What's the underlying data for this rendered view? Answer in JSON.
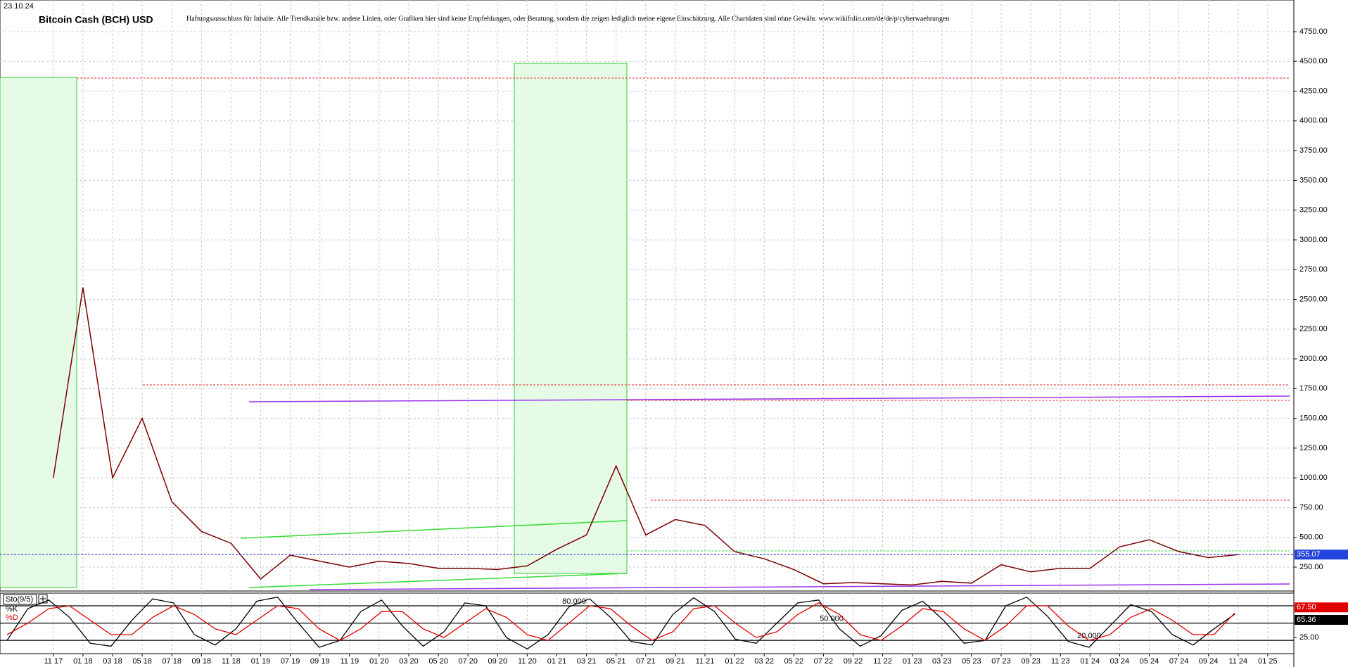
{
  "chart_data": [
    {
      "type": "line",
      "date": "23.10.24",
      "title": "Bitcoin Cash (BCH) USD",
      "disclaimer": "Haftungsausschluss für Inhalte: Alle Trendkanäle bzw. andere Linien, oder Grafiken hier sind keine Empfehlungen, oder Beratung, sondern die zeigen lediglich meine eigene Einschätzung. Alle Chartdaten sind ohne Gewähr. www.wikifolio.com/de/de/p/cyberwaehrungen",
      "categories": [
        "11 17",
        "01 18",
        "03 18",
        "05 18",
        "07 18",
        "09 18",
        "11 18",
        "01 19",
        "07 19",
        "09 19",
        "11 19",
        "01 20",
        "03 20",
        "05 20",
        "07 20",
        "09 20",
        "11 20",
        "01 21",
        "03 21",
        "05 21",
        "07 21",
        "09 21",
        "11 21",
        "01 22",
        "03 22",
        "05 22",
        "07 22",
        "09 22",
        "11 22",
        "01 23",
        "03 23",
        "05 23",
        "07 23",
        "09 23",
        "11 23",
        "01 24",
        "03 24",
        "05 24",
        "07 24",
        "09 24",
        "11 24",
        "01 25"
      ],
      "values": [
        1000,
        2600,
        1000,
        1500,
        800,
        550,
        450,
        150,
        350,
        300,
        250,
        300,
        280,
        240,
        240,
        230,
        260,
        400,
        520,
        1100,
        520,
        650,
        600,
        380,
        320,
        230,
        110,
        120,
        110,
        100,
        130,
        115,
        270,
        210,
        240,
        240,
        420,
        480,
        380,
        330,
        355.07,
        null
      ],
      "color": "#7a0000",
      "last_value_label": "355.07",
      "ylim": [
        49,
        5016
      ],
      "yticks": [
        {
          "value": 250,
          "label": "250.00"
        },
        {
          "value": 500,
          "label": "500.00"
        },
        {
          "value": 750,
          "label": "750.00"
        },
        {
          "value": 1000,
          "label": "1000.00"
        },
        {
          "value": 1250,
          "label": "1250.00"
        },
        {
          "value": 1500,
          "label": "1500.00"
        },
        {
          "value": 1750,
          "label": "1750.00"
        },
        {
          "value": 2000,
          "label": "2000.00"
        },
        {
          "value": 2250,
          "label": "2250.00"
        },
        {
          "value": 2500,
          "label": "2500.00"
        },
        {
          "value": 2750,
          "label": "2750.00"
        },
        {
          "value": 3000,
          "label": "3000.00"
        },
        {
          "value": 3250,
          "label": "3250.00"
        },
        {
          "value": 3500,
          "label": "3500.00"
        },
        {
          "value": 3750,
          "label": "3750.00"
        },
        {
          "value": 4000,
          "label": "4000.00"
        },
        {
          "value": 4250,
          "label": "4250.00"
        },
        {
          "value": 4500,
          "label": "4500.00"
        },
        {
          "value": 4750,
          "label": "4750.00"
        }
      ],
      "grid": true
    },
    {
      "type": "line",
      "title": "Sto(9/5)",
      "ylim": [
        -3,
        102
      ],
      "yticks": [
        {
          "value": 25,
          "label": "25.00"
        }
      ],
      "levels": [
        {
          "value": 80,
          "label": "80.000"
        },
        {
          "value": 50,
          "label": "50.000"
        },
        {
          "value": 20,
          "label": "20.000"
        }
      ],
      "series": [
        {
          "name": "%K",
          "color": "#000000",
          "last_value_label": "65.36",
          "values": [
            20,
            75,
            90,
            60,
            15,
            10,
            55,
            92,
            85,
            30,
            12,
            40,
            88,
            95,
            50,
            8,
            20,
            70,
            90,
            45,
            10,
            35,
            85,
            80,
            25,
            5,
            30,
            78,
            92,
            60,
            18,
            12,
            65,
            94,
            70,
            22,
            15,
            50,
            85,
            90,
            40,
            10,
            28,
            72,
            88,
            55,
            15,
            20,
            80,
            95,
            62,
            18,
            8,
            45,
            82,
            70,
            30,
            12,
            40,
            65.36
          ]
        },
        {
          "name": "%D",
          "color": "#e00000",
          "last_value_label": "67.50",
          "values": [
            30,
            50,
            75,
            80,
            55,
            30,
            30,
            60,
            80,
            65,
            40,
            30,
            55,
            80,
            75,
            40,
            20,
            40,
            70,
            70,
            40,
            25,
            50,
            75,
            60,
            30,
            20,
            50,
            80,
            75,
            45,
            20,
            35,
            75,
            80,
            50,
            25,
            35,
            65,
            85,
            65,
            30,
            20,
            45,
            75,
            70,
            40,
            20,
            45,
            80,
            80,
            45,
            20,
            30,
            60,
            75,
            55,
            30,
            30,
            67.5
          ]
        }
      ]
    }
  ]
}
